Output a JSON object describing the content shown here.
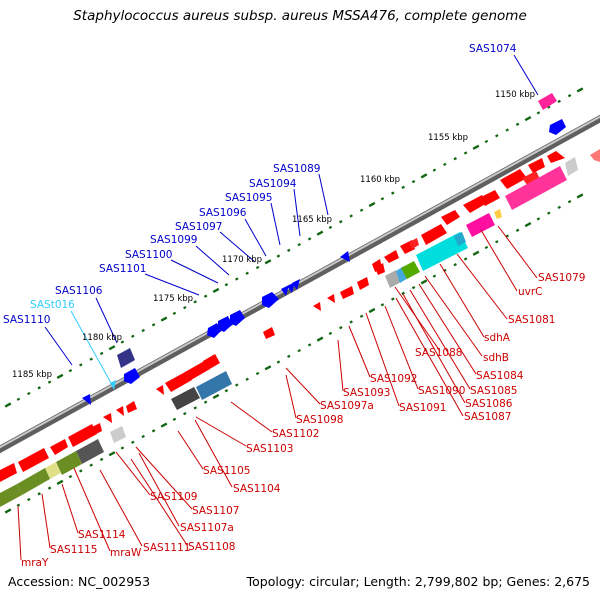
{
  "title": "Staphylococcus aureus subsp. aureus MSSA476, complete genome",
  "accession": "Accession: NC_002953",
  "summary": "Topology: circular; Length: 2,799,802 bp; Genes: 2,675",
  "colors": {
    "forward_label": "#0000cc",
    "reverse_label": "#cc0000",
    "rna_label": "#33ccff",
    "backbone": "#777777",
    "tick": "#116611"
  },
  "kbp_labels": [
    "1150 kbp",
    "1155 kbp",
    "1160 kbp",
    "1165 kbp",
    "1170 kbp",
    "1175 kbp",
    "1180 kbp",
    "1185 kbp"
  ],
  "forward_genes": [
    "SAS1074",
    "SAS1089",
    "SAS1094",
    "SAS1095",
    "SAS1096",
    "SAS1097",
    "SAS1099",
    "SAS1100",
    "SAS1101",
    "SAS1106",
    "SASt016",
    "SAS1110"
  ],
  "reverse_genes": [
    "SAS1079",
    "uvrC",
    "SAS1081",
    "sdhA",
    "sdhB",
    "SAS1088",
    "SAS1084",
    "SAS1085",
    "SAS1086",
    "SAS1087",
    "SAS1090",
    "SAS1091",
    "SAS1092",
    "SAS1093",
    "SAS1097a",
    "SAS1098",
    "SAS1102",
    "SAS1103",
    "SAS1104",
    "SAS1105",
    "SAS1107",
    "SAS1107a",
    "SAS1108",
    "SAS1109",
    "SAS1111",
    "SAS1114",
    "SAS1115",
    "mraW",
    "mraY"
  ]
}
